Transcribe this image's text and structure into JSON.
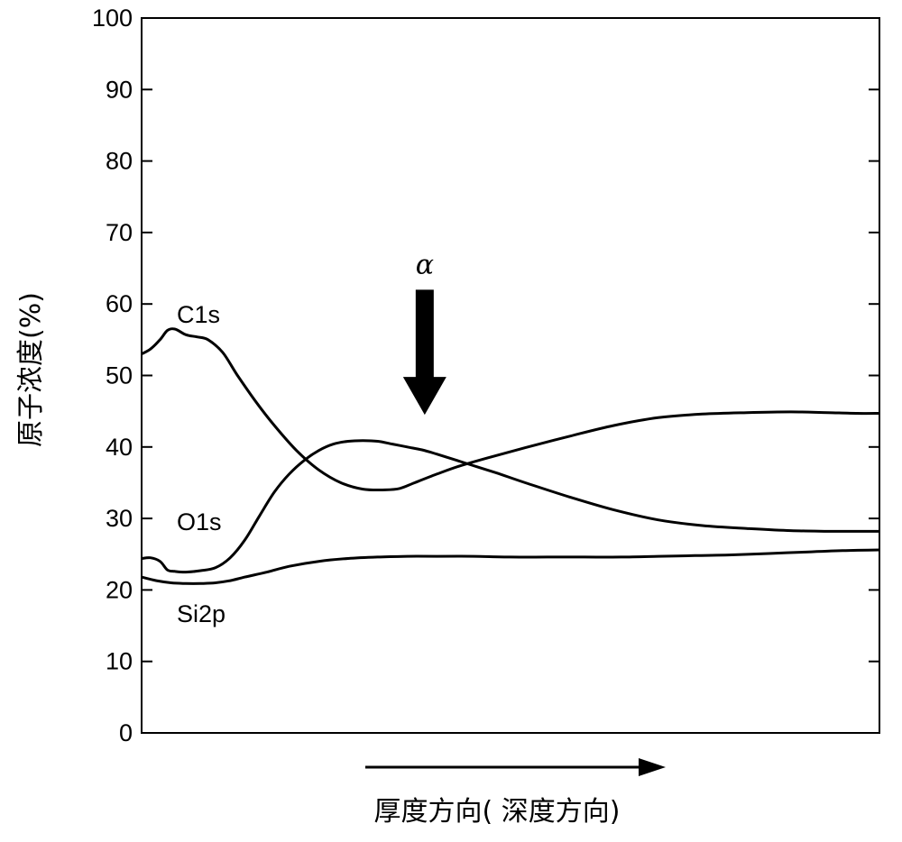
{
  "chart_data": {
    "type": "line",
    "title": "",
    "xlabel": "厚度方向( 深度方向)",
    "ylabel": "原子浓度(%)",
    "ylim": [
      0,
      100
    ],
    "xlim": [
      0,
      100
    ],
    "yticks": [
      "0",
      "10",
      "20",
      "30",
      "40",
      "50",
      "60",
      "70",
      "80",
      "90",
      "100"
    ],
    "grid": false,
    "legend": "none",
    "series": [
      {
        "name": "C1s",
        "x": [
          0,
          1.2,
          2.5,
          3.5,
          4.5,
          6,
          7.5,
          9,
          11,
          13,
          15.5,
          18,
          21,
          24,
          27,
          30,
          33,
          35,
          37,
          40,
          43,
          47,
          52,
          58,
          64,
          70,
          76,
          82,
          88,
          93,
          97,
          100
        ],
        "values": [
          53,
          53.7,
          55,
          56.3,
          56.5,
          55.7,
          55.4,
          55.0,
          53.2,
          50.0,
          46.3,
          43.0,
          39.5,
          36.8,
          35.0,
          34.1,
          34.0,
          34.2,
          35.0,
          36.2,
          37.3,
          38.5,
          39.9,
          41.5,
          43.0,
          44.1,
          44.6,
          44.8,
          44.9,
          44.8,
          44.7,
          44.7
        ]
      },
      {
        "name": "O1s",
        "x": [
          0,
          1.2,
          2.5,
          3.5,
          4.5,
          6,
          8,
          10,
          12,
          14,
          16,
          18,
          20,
          22,
          24,
          26,
          28,
          30,
          32,
          34,
          36,
          38,
          40,
          44,
          48,
          52,
          58,
          64,
          70,
          76,
          82,
          88,
          93,
          97,
          100
        ],
        "values": [
          24.4,
          24.5,
          24.0,
          22.8,
          22.6,
          22.5,
          22.7,
          23.1,
          24.5,
          27.0,
          30.4,
          33.7,
          36.2,
          38.1,
          39.5,
          40.4,
          40.8,
          40.9,
          40.8,
          40.4,
          40.0,
          39.6,
          39.0,
          37.7,
          36.4,
          35.0,
          33.0,
          31.2,
          29.8,
          29.0,
          28.6,
          28.3,
          28.2,
          28.2,
          28.2
        ]
      },
      {
        "name": "Si2p",
        "x": [
          0,
          2,
          4,
          6,
          8,
          10,
          12,
          14,
          17,
          20,
          24,
          28,
          32,
          36,
          40,
          45,
          50,
          55,
          60,
          65,
          70,
          75,
          80,
          85,
          90,
          95,
          100
        ],
        "values": [
          21.8,
          21.3,
          21.0,
          20.9,
          20.9,
          21.0,
          21.3,
          21.8,
          22.5,
          23.3,
          24.0,
          24.4,
          24.6,
          24.7,
          24.7,
          24.7,
          24.6,
          24.6,
          24.6,
          24.6,
          24.7,
          24.8,
          24.9,
          25.1,
          25.3,
          25.5,
          25.6
        ]
      }
    ],
    "series_labels": [
      "C1s",
      "O1s",
      "Si2p"
    ],
    "annotation": {
      "text": "α",
      "arrow": "down",
      "target_x": 38,
      "arrow_top_y": 62,
      "arrow_tip_y": 44.5
    },
    "x_direction_arrow": "right"
  }
}
